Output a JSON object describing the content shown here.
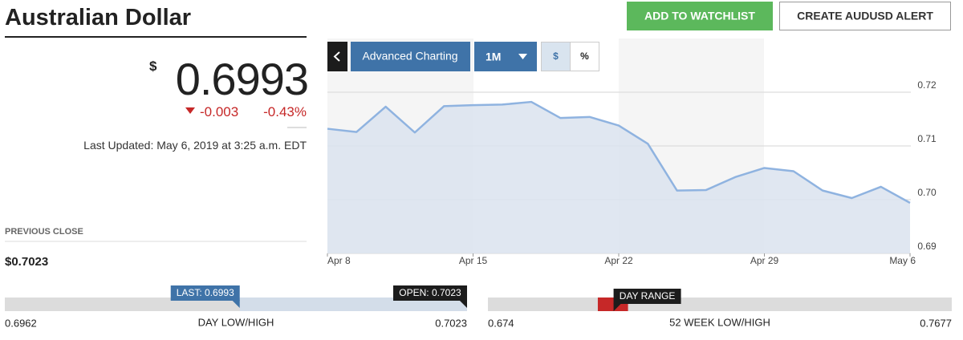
{
  "header": {
    "title": "Australian Dollar",
    "buttons": [
      "ADD TO WATCHLIST",
      "CREATE AUDUSD ALERT"
    ]
  },
  "quote": {
    "currency_symbol": "$",
    "price": 0.6993,
    "change": -0.003,
    "change_percent": "-0.43%",
    "last_updated": "Last Updated: May 6, 2019 at 3:25 a.m. EDT"
  },
  "previous_close": {
    "label": "PREVIOUS CLOSE",
    "value": "$0.7023"
  },
  "chart_controls": {
    "advanced": "Advanced Charting",
    "period": "1M",
    "units": [
      "$",
      "%"
    ]
  },
  "chart_data": {
    "type": "line",
    "categories": [
      "Apr 8",
      null,
      null,
      null,
      null,
      "Apr 15",
      null,
      null,
      null,
      null,
      "Apr 22",
      null,
      null,
      null,
      null,
      "Apr 29",
      null,
      null,
      null,
      null,
      "May 6"
    ],
    "values": [
      0.7132,
      0.7126,
      0.7173,
      0.7125,
      0.7174,
      0.7176,
      0.7177,
      0.7182,
      0.7152,
      0.7154,
      0.7138,
      0.7104,
      0.7017,
      0.7018,
      0.7042,
      0.7059,
      0.7053,
      0.7017,
      0.7003,
      0.7024,
      0.6994
    ],
    "color": "#8fb3e0",
    "ylim": [
      0.69,
      0.73
    ],
    "yticks": [
      0.69,
      {
        "value": 0.7,
        "label": "0.70"
      },
      0.71,
      0.72
    ],
    "grid": true
  },
  "day_range": {
    "title": "DAY LOW/HIGH",
    "low": 0.6962,
    "high": 0.7023,
    "last_label": "LAST:",
    "last": 0.6993,
    "open_label": "OPEN:",
    "open": 0.7023
  },
  "week52_range": {
    "title": "52 WEEK LOW/HIGH",
    "low": 0.674,
    "high": 0.7677,
    "marker_label": "DAY RANGE"
  }
}
